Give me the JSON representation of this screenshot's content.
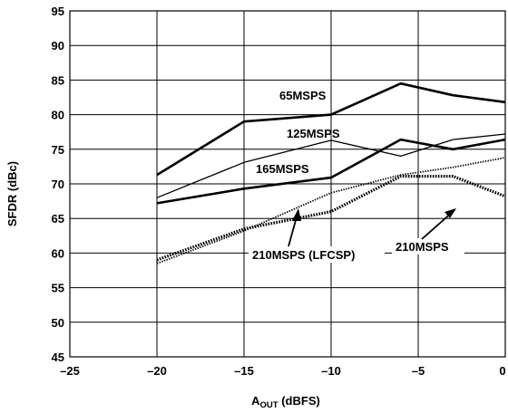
{
  "chart_data": {
    "type": "line",
    "xlabel_main": "A",
    "xlabel_sub": "OUT",
    "xlabel_unit": " (dBFS)",
    "ylabel": "SFDR (dBc)",
    "xlim": [
      -25,
      0
    ],
    "ylim": [
      45,
      95
    ],
    "xticks": [
      -25,
      -20,
      -15,
      -10,
      -5,
      0
    ],
    "yticks": [
      45,
      50,
      55,
      60,
      65,
      70,
      75,
      80,
      85,
      90,
      95
    ],
    "xtick_labels": [
      "–25",
      "–20",
      "–15",
      "–10",
      "–5",
      "0"
    ],
    "grid": true,
    "series": [
      {
        "name": "65MSPS",
        "x": [
          -20,
          -15,
          -10,
          -6,
          -3,
          0
        ],
        "y": [
          71.3,
          79.0,
          80.0,
          84.5,
          82.8,
          81.8
        ],
        "style": "thick"
      },
      {
        "name": "125MSPS",
        "x": [
          -20,
          -15,
          -10,
          -6,
          -3,
          0
        ],
        "y": [
          68.0,
          73.1,
          76.3,
          74.0,
          76.4,
          77.2
        ],
        "style": "thin"
      },
      {
        "name": "165MSPS",
        "x": [
          -20,
          -15,
          -10,
          -6,
          -3,
          0
        ],
        "y": [
          67.2,
          69.3,
          70.9,
          76.4,
          75.0,
          76.4
        ],
        "style": "thick"
      },
      {
        "name": "210MSPS",
        "x": [
          -20,
          -15,
          -10,
          -6,
          -3,
          0
        ],
        "y": [
          59.0,
          63.5,
          66.0,
          71.1,
          71.1,
          68.2
        ],
        "style": "dotted-thick"
      },
      {
        "name": "210MSPS (LFCSP)",
        "x": [
          -20,
          -15,
          -10,
          -6,
          -3,
          0
        ],
        "y": [
          58.5,
          63.2,
          68.7,
          71.3,
          72.4,
          73.8
        ],
        "style": "dotted-thin"
      }
    ]
  }
}
